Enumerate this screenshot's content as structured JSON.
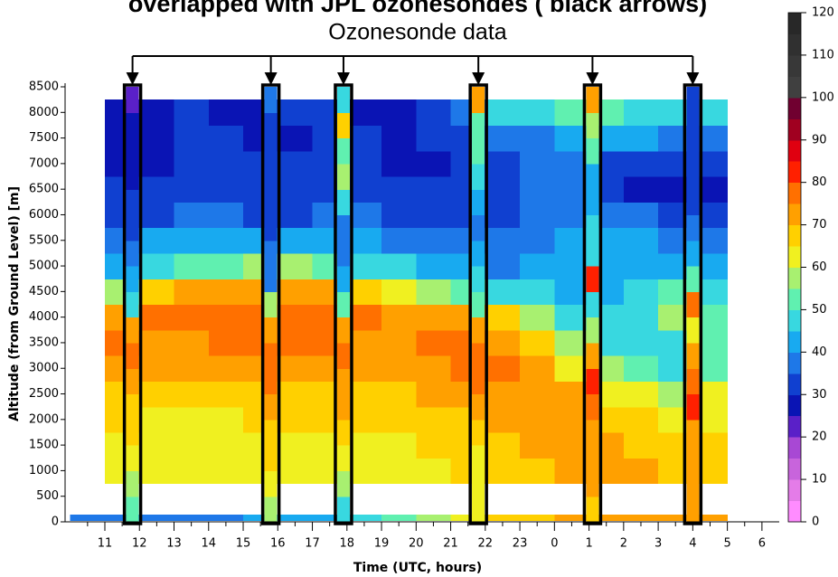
{
  "chart_data": {
    "type": "heatmap",
    "title": "overlapped with JPL ozonesondes ( black arrows)",
    "annotation": "Ozonesonde data",
    "x_label": "Time (UTC, hours)",
    "y_label": "Altitude (from Ground Level) [m]",
    "xlim": [
      9.85,
      30.5
    ],
    "xticks": [
      11,
      12,
      13,
      14,
      15,
      16,
      17,
      18,
      19,
      20,
      21,
      22,
      23,
      {
        "value": 24,
        "label": "0"
      },
      {
        "value": 25,
        "label": "1"
      },
      {
        "value": 26,
        "label": "2"
      },
      {
        "value": 27,
        "label": "3"
      },
      {
        "value": 28,
        "label": "4"
      },
      {
        "value": 29,
        "label": "5"
      },
      {
        "value": 30,
        "label": "6"
      }
    ],
    "ylim": [
      0,
      8500
    ],
    "yticks": [
      0,
      500,
      1000,
      1500,
      2000,
      2500,
      3000,
      3500,
      4000,
      4500,
      5000,
      5500,
      6000,
      6500,
      7000,
      7500,
      8000,
      8500
    ],
    "clim": [
      0,
      120
    ],
    "colorbar_ticks": [
      0,
      10,
      20,
      30,
      40,
      50,
      60,
      70,
      80,
      90,
      100,
      110,
      120
    ],
    "colormap": [
      "#ff8cff",
      "#e47ce8",
      "#c864dc",
      "#a848d4",
      "#5a20c8",
      "#0a14b4",
      "#1040d0",
      "#1e78e8",
      "#18aaf0",
      "#38d8e0",
      "#60f0b0",
      "#a8f070",
      "#f0f020",
      "#ffd000",
      "#ffa000",
      "#ff7000",
      "#ff2000",
      "#e00010",
      "#a00020",
      "#700030",
      "#404040",
      "#383838",
      "#303030",
      "#282828"
    ],
    "x": [
      11.5,
      12.5,
      13.5,
      14.5,
      15.5,
      16.5,
      17.5,
      18.5,
      19.5,
      20.5,
      21.5,
      22.5,
      23.5,
      24.5,
      25.5,
      26.5,
      27.5,
      28.5
    ],
    "y": [
      1000,
      1500,
      2000,
      2500,
      3000,
      3500,
      4000,
      4500,
      5000,
      5500,
      6000,
      6500,
      7000,
      7500,
      8000
    ],
    "z": [
      [
        60,
        60,
        60,
        60,
        60,
        62,
        62,
        60,
        62,
        62,
        65,
        65,
        68,
        70,
        70,
        70,
        68,
        68
      ],
      [
        62,
        62,
        62,
        62,
        62,
        62,
        63,
        62,
        63,
        65,
        67,
        68,
        70,
        72,
        70,
        68,
        66,
        66
      ],
      [
        65,
        64,
        64,
        64,
        65,
        65,
        65,
        65,
        66,
        67,
        68,
        70,
        72,
        72,
        68,
        66,
        64,
        64
      ],
      [
        68,
        67,
        67,
        67,
        68,
        68,
        68,
        68,
        68,
        70,
        72,
        74,
        74,
        70,
        64,
        60,
        58,
        60
      ],
      [
        72,
        70,
        70,
        70,
        72,
        72,
        72,
        72,
        70,
        72,
        75,
        75,
        72,
        64,
        55,
        50,
        48,
        52
      ],
      [
        75,
        74,
        74,
        75,
        75,
        76,
        76,
        74,
        72,
        75,
        76,
        74,
        66,
        55,
        48,
        45,
        45,
        50
      ],
      [
        74,
        75,
        76,
        76,
        76,
        77,
        76,
        75,
        72,
        74,
        72,
        66,
        56,
        48,
        45,
        45,
        55,
        50
      ],
      [
        55,
        65,
        70,
        72,
        72,
        72,
        70,
        66,
        60,
        58,
        52,
        48,
        45,
        42,
        42,
        45,
        52,
        45
      ],
      [
        42,
        45,
        50,
        52,
        55,
        55,
        50,
        48,
        45,
        42,
        40,
        38,
        40,
        40,
        42,
        42,
        42,
        40
      ],
      [
        38,
        40,
        40,
        42,
        42,
        40,
        40,
        40,
        38,
        38,
        36,
        35,
        38,
        40,
        40,
        40,
        38,
        36
      ],
      [
        32,
        34,
        35,
        35,
        34,
        34,
        35,
        35,
        32,
        32,
        32,
        32,
        35,
        38,
        38,
        35,
        30,
        30
      ],
      [
        30,
        30,
        30,
        32,
        30,
        30,
        32,
        34,
        30,
        30,
        30,
        32,
        35,
        35,
        32,
        28,
        26,
        28
      ],
      [
        28,
        28,
        30,
        32,
        30,
        30,
        32,
        32,
        28,
        28,
        30,
        32,
        35,
        38,
        34,
        30,
        30,
        32
      ],
      [
        25,
        28,
        30,
        30,
        28,
        28,
        30,
        30,
        25,
        30,
        32,
        35,
        38,
        42,
        40,
        40,
        38,
        36
      ],
      [
        26,
        28,
        30,
        28,
        28,
        30,
        30,
        28,
        25,
        32,
        38,
        45,
        45,
        50,
        52,
        48,
        45,
        45
      ]
    ],
    "sonde_altitudes": [
      250,
      750,
      1250,
      1750,
      2250,
      2750,
      3250,
      3750,
      4250,
      4750,
      5250,
      5750,
      6250,
      6750,
      7250,
      7750,
      8250
    ],
    "sondes": [
      {
        "x": 11.8,
        "values": [
          50,
          58,
          62,
          65,
          68,
          72,
          75,
          72,
          48,
          40,
          35,
          30,
          30,
          28,
          25,
          28,
          22
        ]
      },
      {
        "x": 15.8,
        "values": [
          55,
          62,
          65,
          68,
          72,
          75,
          76,
          74,
          55,
          38,
          35,
          30,
          32,
          30,
          30,
          32,
          35
        ]
      },
      {
        "x": 17.9,
        "values": [
          45,
          58,
          62,
          66,
          70,
          74,
          76,
          72,
          50,
          42,
          38,
          35,
          45,
          55,
          50,
          65,
          45
        ]
      },
      {
        "x": 21.8,
        "values": [
          60,
          62,
          64,
          68,
          72,
          76,
          78,
          70,
          52,
          45,
          40,
          38,
          40,
          45,
          50,
          52,
          72
        ]
      },
      {
        "x": 25.1,
        "values": [
          68,
          70,
          70,
          72,
          75,
          80,
          70,
          55,
          45,
          80,
          48,
          45,
          40,
          42,
          50,
          55,
          70
        ]
      },
      {
        "x": 28.0,
        "values": [
          70,
          72,
          70,
          72,
          80,
          75,
          72,
          62,
          75,
          50,
          40,
          35,
          30,
          32,
          30,
          32,
          30
        ]
      }
    ],
    "surface": {
      "x": [
        10.5,
        11.5,
        12.5,
        13.5,
        14.5,
        15.5,
        16.5,
        17.5,
        18.5,
        19.5,
        20.5,
        21.5,
        22.5,
        23.5,
        24.5,
        25.5,
        26.5,
        27.5,
        28.5
      ],
      "values": [
        35,
        35,
        35,
        36,
        38,
        40,
        40,
        42,
        45,
        52,
        58,
        62,
        66,
        68,
        70,
        70,
        70,
        72,
        70
      ]
    }
  }
}
